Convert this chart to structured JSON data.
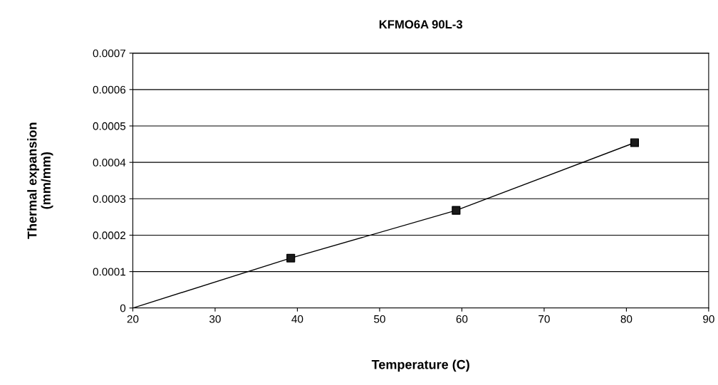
{
  "chart_data": {
    "type": "line",
    "title": "KFMO6A 90L-3",
    "xlabel": "Temperature (C)",
    "ylabel": "Thermal expansion\n(mm/mm)",
    "series": [
      {
        "color": "#000000",
        "marker": "none",
        "x": [
          20,
          39.2,
          59.3,
          81
        ],
        "values": [
          0,
          0.000137,
          0.000268,
          0.000454
        ]
      },
      {
        "type": "scatter",
        "color": "#1a1a1a",
        "marker": "square",
        "x": [
          39.2,
          59.3,
          81
        ],
        "values": [
          0.000137,
          0.000268,
          0.000454
        ]
      }
    ],
    "xlim": [
      20,
      90
    ],
    "xticks": [
      20,
      30,
      40,
      50,
      60,
      70,
      80,
      90
    ],
    "ylim": [
      0,
      0.0007
    ],
    "yticks": [
      0,
      0.0001,
      0.0002,
      0.0003,
      0.0004,
      0.0005,
      0.0006,
      0.0007
    ],
    "grid": "y",
    "legend": false
  }
}
